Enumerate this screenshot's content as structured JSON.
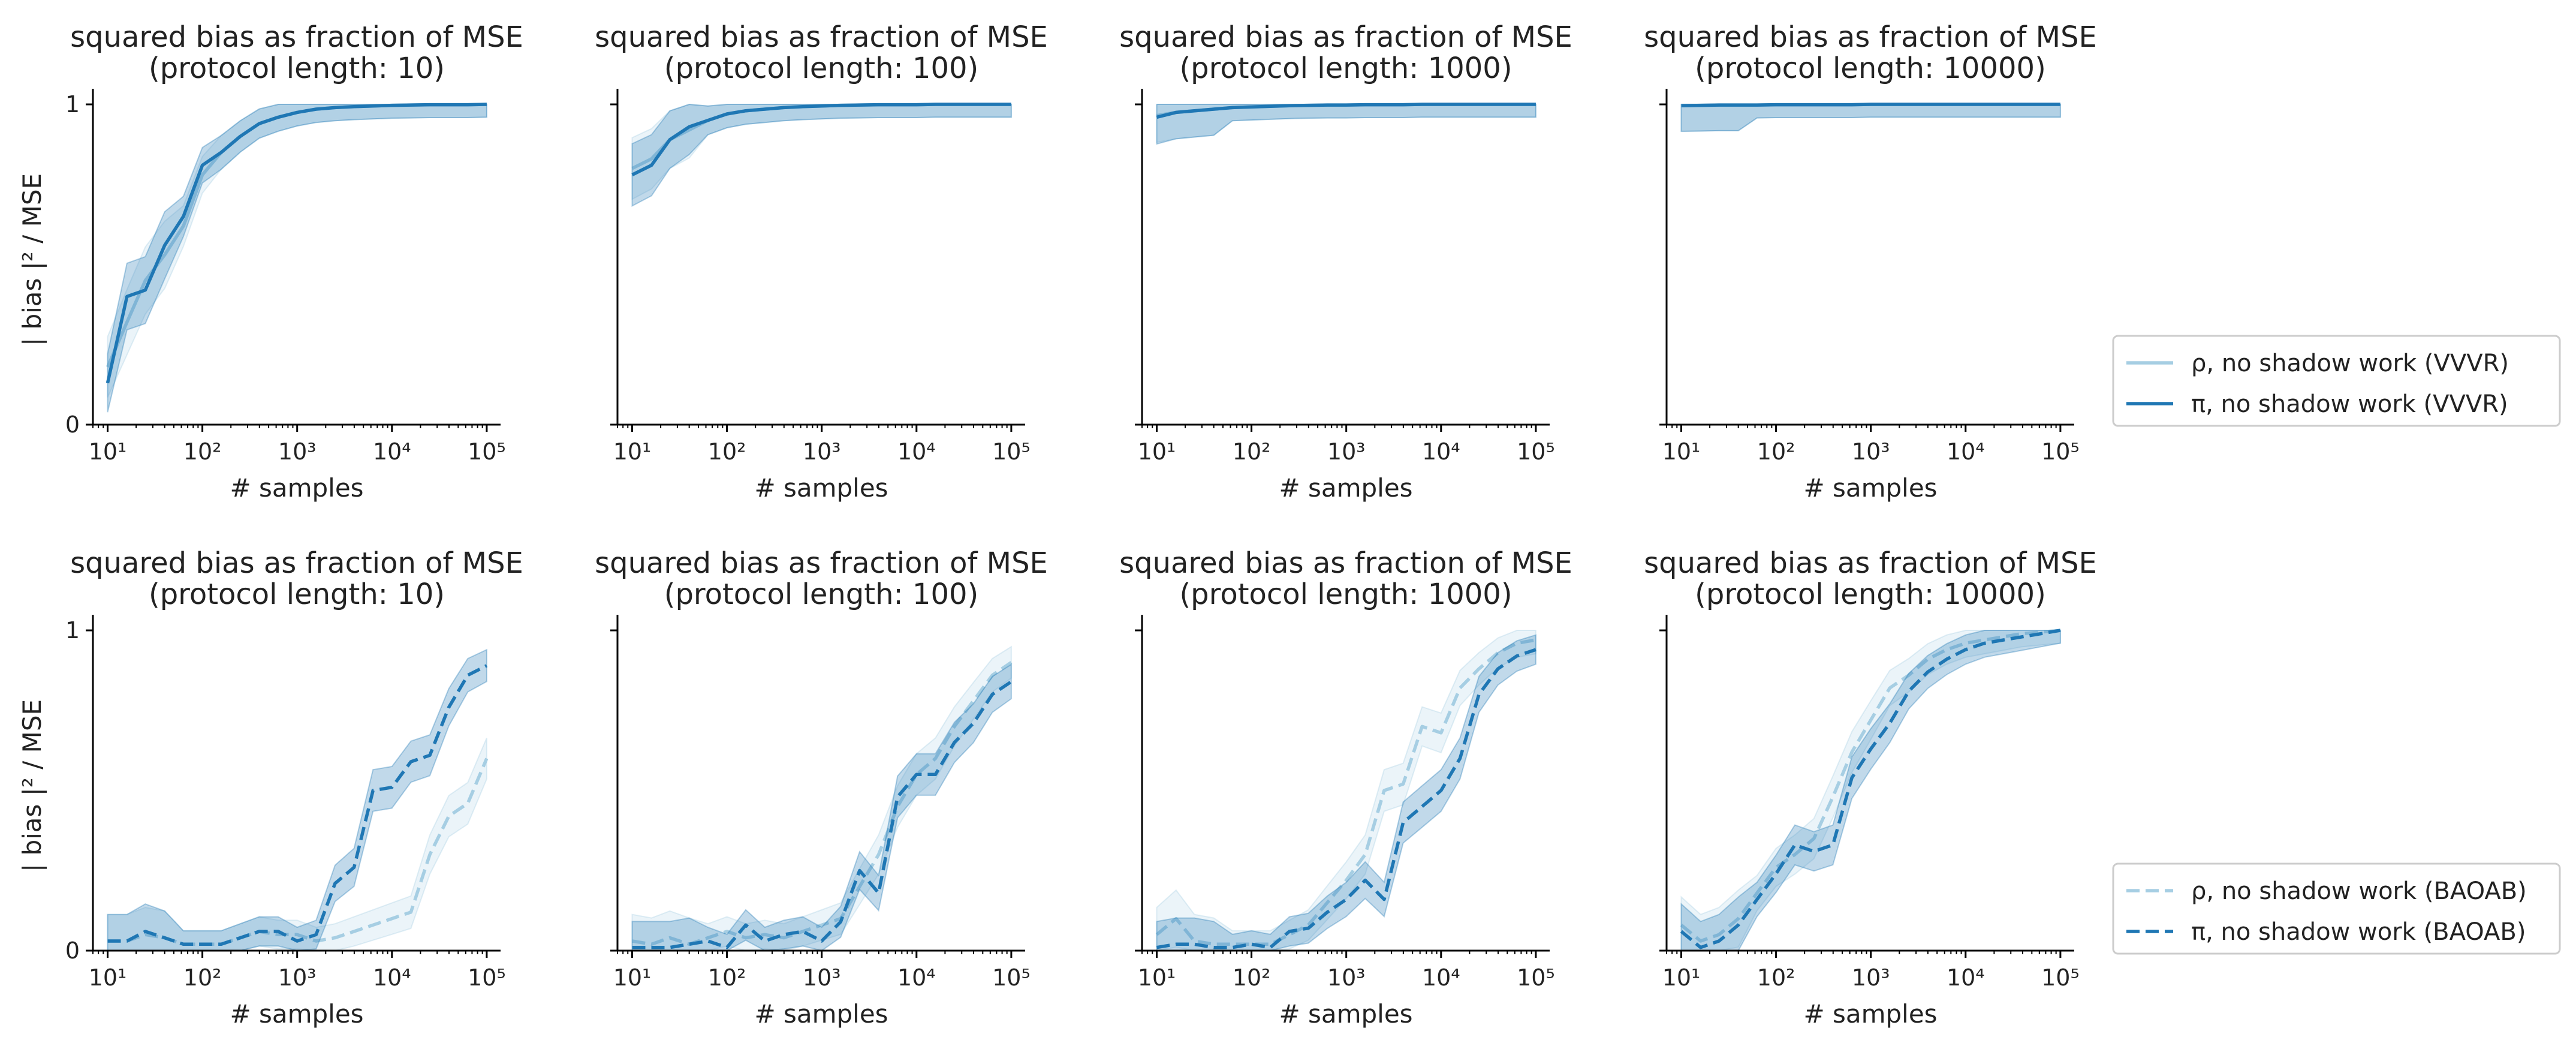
{
  "chart_data": [
    {
      "type": "line",
      "title": [
        "squared bias as fraction of MSE",
        "(protocol length: 10)"
      ],
      "xlabel": "# samples",
      "ylabel": "| bias |² / MSE",
      "xscale": "log",
      "xlim": [
        7,
        140000
      ],
      "ylim": [
        0,
        1.03
      ],
      "xticks": [
        "10¹",
        "10²",
        "10³",
        "10⁴",
        "10⁵"
      ],
      "yticks": [
        "0",
        "1"
      ],
      "series": [
        {
          "style": "solid",
          "color": "#a6cee3",
          "x": [
            10,
            16,
            25,
            40,
            63,
            100,
            158,
            251,
            398,
            631,
            1000,
            1585,
            2512,
            3981,
            6310,
            10000,
            15849,
            25119,
            39811,
            63096,
            100000
          ],
          "y": [
            0.18,
            0.32,
            0.45,
            0.53,
            0.62,
            0.78,
            0.85,
            0.9,
            0.94,
            0.96,
            0.975,
            0.985,
            0.99,
            0.993,
            0.995,
            0.997,
            0.998,
            0.999,
            0.999,
            0.999,
            1.0
          ]
        },
        {
          "style": "solid",
          "color": "#1f77b4",
          "x": [
            10,
            16,
            25,
            40,
            63,
            100,
            158,
            251,
            398,
            631,
            1000,
            1585,
            2512,
            3981,
            6310,
            10000,
            15849,
            25119,
            39811,
            63096,
            100000
          ],
          "y": [
            0.13,
            0.4,
            0.42,
            0.56,
            0.65,
            0.81,
            0.85,
            0.9,
            0.94,
            0.96,
            0.975,
            0.985,
            0.99,
            0.993,
            0.995,
            0.997,
            0.998,
            0.999,
            0.999,
            0.999,
            1.0
          ]
        }
      ]
    },
    {
      "type": "line",
      "title": [
        "squared bias as fraction of MSE",
        "(protocol length: 100)"
      ],
      "xlabel": "# samples",
      "ylabel": "",
      "xscale": "log",
      "xlim": [
        7,
        140000
      ],
      "ylim": [
        0,
        1.03
      ],
      "xticks": [
        "10¹",
        "10²",
        "10³",
        "10⁴",
        "10⁵"
      ],
      "yticks": [
        "",
        ""
      ],
      "series": [
        {
          "style": "solid",
          "color": "#a6cee3",
          "x": [
            10,
            16,
            25,
            40,
            63,
            100,
            158,
            251,
            398,
            631,
            1000,
            1585,
            2512,
            3981,
            6310,
            10000,
            15849,
            25119,
            39811,
            63096,
            100000
          ],
          "y": [
            0.8,
            0.83,
            0.89,
            0.92,
            0.95,
            0.97,
            0.98,
            0.985,
            0.99,
            0.993,
            0.995,
            0.997,
            0.998,
            0.999,
            0.999,
            0.999,
            1.0,
            1.0,
            1.0,
            1.0,
            1.0
          ]
        },
        {
          "style": "solid",
          "color": "#1f77b4",
          "x": [
            10,
            16,
            25,
            40,
            63,
            100,
            158,
            251,
            398,
            631,
            1000,
            1585,
            2512,
            3981,
            6310,
            10000,
            15849,
            25119,
            39811,
            63096,
            100000
          ],
          "y": [
            0.78,
            0.81,
            0.89,
            0.93,
            0.95,
            0.97,
            0.98,
            0.985,
            0.99,
            0.993,
            0.995,
            0.997,
            0.998,
            0.999,
            0.999,
            0.999,
            1.0,
            1.0,
            1.0,
            1.0,
            1.0
          ]
        }
      ]
    },
    {
      "type": "line",
      "title": [
        "squared bias as fraction of MSE",
        "(protocol length: 1000)"
      ],
      "xlabel": "# samples",
      "ylabel": "",
      "xscale": "log",
      "xlim": [
        7,
        140000
      ],
      "ylim": [
        0,
        1.03
      ],
      "xticks": [
        "10¹",
        "10²",
        "10³",
        "10⁴",
        "10⁵"
      ],
      "yticks": [
        "",
        ""
      ],
      "series": [
        {
          "style": "solid",
          "color": "#a6cee3",
          "x": [
            10,
            16,
            25,
            40,
            63,
            100,
            158,
            251,
            398,
            631,
            1000,
            1585,
            2512,
            3981,
            6310,
            10000,
            15849,
            25119,
            39811,
            63096,
            100000
          ],
          "y": [
            0.965,
            0.975,
            0.98,
            0.985,
            0.99,
            0.992,
            0.994,
            0.996,
            0.997,
            0.998,
            0.998,
            0.999,
            0.999,
            0.999,
            1.0,
            1.0,
            1.0,
            1.0,
            1.0,
            1.0,
            1.0
          ]
        },
        {
          "style": "solid",
          "color": "#1f77b4",
          "x": [
            10,
            16,
            25,
            40,
            63,
            100,
            158,
            251,
            398,
            631,
            1000,
            1585,
            2512,
            3981,
            6310,
            10000,
            15849,
            25119,
            39811,
            63096,
            100000
          ],
          "y": [
            0.96,
            0.975,
            0.98,
            0.985,
            0.99,
            0.992,
            0.994,
            0.996,
            0.997,
            0.998,
            0.998,
            0.999,
            0.999,
            0.999,
            1.0,
            1.0,
            1.0,
            1.0,
            1.0,
            1.0,
            1.0
          ]
        }
      ]
    },
    {
      "type": "line",
      "title": [
        "squared bias as fraction of MSE",
        "(protocol length: 10000)"
      ],
      "xlabel": "# samples",
      "ylabel": "",
      "xscale": "log",
      "xlim": [
        7,
        140000
      ],
      "ylim": [
        0,
        1.03
      ],
      "xticks": [
        "10¹",
        "10²",
        "10³",
        "10⁴",
        "10⁵"
      ],
      "yticks": [
        "",
        ""
      ],
      "series": [
        {
          "style": "solid",
          "color": "#a6cee3",
          "x": [
            10,
            16,
            25,
            40,
            63,
            100,
            158,
            251,
            398,
            631,
            1000,
            1585,
            2512,
            3981,
            6310,
            10000,
            15849,
            25119,
            39811,
            63096,
            100000
          ],
          "y": [
            0.997,
            0.997,
            0.998,
            0.998,
            0.998,
            0.999,
            0.999,
            0.999,
            0.999,
            0.999,
            1.0,
            1.0,
            1.0,
            1.0,
            1.0,
            1.0,
            1.0,
            1.0,
            1.0,
            1.0,
            1.0
          ]
        },
        {
          "style": "solid",
          "color": "#1f77b4",
          "x": [
            10,
            16,
            25,
            40,
            63,
            100,
            158,
            251,
            398,
            631,
            1000,
            1585,
            2512,
            3981,
            6310,
            10000,
            15849,
            25119,
            39811,
            63096,
            100000
          ],
          "y": [
            0.996,
            0.997,
            0.998,
            0.998,
            0.998,
            0.999,
            0.999,
            0.999,
            0.999,
            0.999,
            1.0,
            1.0,
            1.0,
            1.0,
            1.0,
            1.0,
            1.0,
            1.0,
            1.0,
            1.0,
            1.0
          ]
        }
      ]
    },
    {
      "type": "line",
      "title": [
        "squared bias as fraction of MSE",
        "(protocol length: 10)"
      ],
      "xlabel": "# samples",
      "ylabel": "| bias |² / MSE",
      "xscale": "log",
      "xlim": [
        7,
        140000
      ],
      "ylim": [
        0,
        1.03
      ],
      "xticks": [
        "10¹",
        "10²",
        "10³",
        "10⁴",
        "10⁵"
      ],
      "yticks": [
        "0",
        "1"
      ],
      "series": [
        {
          "style": "dashed",
          "color": "#a6cee3",
          "x": [
            10,
            16,
            25,
            40,
            63,
            100,
            158,
            251,
            398,
            631,
            1000,
            1585,
            2512,
            3981,
            6310,
            10000,
            15849,
            25119,
            39811,
            63096,
            100000
          ],
          "y": [
            0.03,
            0.03,
            0.05,
            0.04,
            0.02,
            0.02,
            0.02,
            0.04,
            0.06,
            0.05,
            0.05,
            0.03,
            0.04,
            0.06,
            0.08,
            0.1,
            0.12,
            0.3,
            0.42,
            0.46,
            0.6
          ]
        },
        {
          "style": "dashed",
          "color": "#1f77b4",
          "x": [
            10,
            16,
            25,
            40,
            63,
            100,
            158,
            251,
            398,
            631,
            1000,
            1585,
            2512,
            3981,
            6310,
            10000,
            15849,
            25119,
            39811,
            63096,
            100000
          ],
          "y": [
            0.03,
            0.03,
            0.06,
            0.04,
            0.02,
            0.02,
            0.02,
            0.04,
            0.06,
            0.06,
            0.03,
            0.05,
            0.21,
            0.26,
            0.5,
            0.51,
            0.59,
            0.61,
            0.76,
            0.86,
            0.89
          ]
        }
      ]
    },
    {
      "type": "line",
      "title": [
        "squared bias as fraction of MSE",
        "(protocol length: 100)"
      ],
      "xlabel": "# samples",
      "ylabel": "",
      "xscale": "log",
      "xlim": [
        7,
        140000
      ],
      "ylim": [
        0,
        1.03
      ],
      "xticks": [
        "10¹",
        "10²",
        "10³",
        "10⁴",
        "10⁵"
      ],
      "yticks": [
        "",
        ""
      ],
      "series": [
        {
          "style": "dashed",
          "color": "#a6cee3",
          "x": [
            10,
            16,
            25,
            40,
            63,
            100,
            158,
            251,
            398,
            631,
            1000,
            1585,
            2512,
            3981,
            6310,
            10000,
            15849,
            25119,
            39811,
            63096,
            100000
          ],
          "y": [
            0.03,
            0.02,
            0.04,
            0.02,
            0.04,
            0.06,
            0.04,
            0.05,
            0.04,
            0.06,
            0.08,
            0.1,
            0.2,
            0.3,
            0.45,
            0.55,
            0.6,
            0.7,
            0.78,
            0.86,
            0.9
          ]
        },
        {
          "style": "dashed",
          "color": "#1f77b4",
          "x": [
            10,
            16,
            25,
            40,
            63,
            100,
            158,
            251,
            398,
            631,
            1000,
            1585,
            2512,
            3981,
            6310,
            10000,
            15849,
            25119,
            39811,
            63096,
            100000
          ],
          "y": [
            0.01,
            0.01,
            0.01,
            0.02,
            0.03,
            0.01,
            0.08,
            0.03,
            0.05,
            0.06,
            0.03,
            0.09,
            0.25,
            0.18,
            0.48,
            0.55,
            0.55,
            0.65,
            0.71,
            0.8,
            0.84
          ]
        }
      ]
    },
    {
      "type": "line",
      "title": [
        "squared bias as fraction of MSE",
        "(protocol length: 1000)"
      ],
      "xlabel": "# samples",
      "ylabel": "",
      "xscale": "log",
      "xlim": [
        7,
        140000
      ],
      "ylim": [
        0,
        1.03
      ],
      "xticks": [
        "10¹",
        "10²",
        "10³",
        "10⁴",
        "10⁵"
      ],
      "yticks": [
        "",
        ""
      ],
      "series": [
        {
          "style": "dashed",
          "color": "#a6cee3",
          "x": [
            10,
            16,
            25,
            40,
            63,
            100,
            158,
            251,
            398,
            631,
            1000,
            1585,
            2512,
            3981,
            6310,
            10000,
            15849,
            25119,
            39811,
            63096,
            100000
          ],
          "y": [
            0.05,
            0.1,
            0.03,
            0.02,
            0.02,
            0.02,
            0.02,
            0.05,
            0.08,
            0.15,
            0.22,
            0.3,
            0.5,
            0.52,
            0.7,
            0.68,
            0.82,
            0.88,
            0.93,
            0.96,
            0.97
          ]
        },
        {
          "style": "dashed",
          "color": "#1f77b4",
          "x": [
            10,
            16,
            25,
            40,
            63,
            100,
            158,
            251,
            398,
            631,
            1000,
            1585,
            2512,
            3981,
            6310,
            10000,
            15849,
            25119,
            39811,
            63096,
            100000
          ],
          "y": [
            0.01,
            0.02,
            0.02,
            0.01,
            0.01,
            0.02,
            0.01,
            0.06,
            0.07,
            0.12,
            0.16,
            0.22,
            0.16,
            0.4,
            0.45,
            0.5,
            0.6,
            0.8,
            0.88,
            0.92,
            0.94
          ]
        }
      ]
    },
    {
      "type": "line",
      "title": [
        "squared bias as fraction of MSE",
        "(protocol length: 10000)"
      ],
      "xlabel": "# samples",
      "ylabel": "",
      "xscale": "log",
      "xlim": [
        7,
        140000
      ],
      "ylim": [
        0,
        1.03
      ],
      "xticks": [
        "10¹",
        "10²",
        "10³",
        "10⁴",
        "10⁵"
      ],
      "yticks": [
        "",
        ""
      ],
      "series": [
        {
          "style": "dashed",
          "color": "#a6cee3",
          "x": [
            10,
            16,
            25,
            40,
            63,
            100,
            158,
            251,
            398,
            631,
            1000,
            1585,
            2512,
            3981,
            6310,
            10000,
            15849,
            25119,
            39811,
            63096,
            100000
          ],
          "y": [
            0.08,
            0.03,
            0.05,
            0.1,
            0.18,
            0.26,
            0.3,
            0.35,
            0.48,
            0.62,
            0.72,
            0.82,
            0.86,
            0.91,
            0.94,
            0.96,
            0.97,
            0.98,
            0.99,
            0.995,
            1.0
          ]
        },
        {
          "style": "dashed",
          "color": "#1f77b4",
          "x": [
            10,
            16,
            25,
            40,
            63,
            100,
            158,
            251,
            398,
            631,
            1000,
            1585,
            2512,
            3981,
            6310,
            10000,
            15849,
            25119,
            39811,
            63096,
            100000
          ],
          "y": [
            0.06,
            0.01,
            0.03,
            0.08,
            0.16,
            0.24,
            0.33,
            0.31,
            0.33,
            0.54,
            0.63,
            0.71,
            0.81,
            0.87,
            0.91,
            0.94,
            0.96,
            0.97,
            0.98,
            0.99,
            1.0
          ]
        }
      ]
    }
  ],
  "legends": [
    {
      "row": 0,
      "entries": [
        {
          "label": "ρ, no shadow work (VVVR)",
          "color": "#a6cee3",
          "style": "solid"
        },
        {
          "label": "π, no shadow work (VVVR)",
          "color": "#1f77b4",
          "style": "solid"
        }
      ]
    },
    {
      "row": 1,
      "entries": [
        {
          "label": "ρ, no shadow work (BAOAB)",
          "color": "#a6cee3",
          "style": "dashed"
        },
        {
          "label": "π, no shadow work (BAOAB)",
          "color": "#1f77b4",
          "style": "dashed"
        }
      ]
    }
  ]
}
